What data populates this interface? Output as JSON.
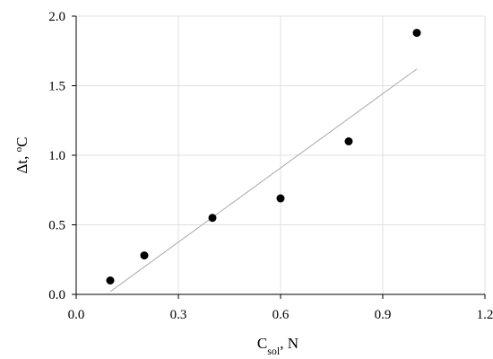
{
  "chart_data": {
    "type": "scatter",
    "title": "",
    "xlabel_main": "C",
    "xlabel_sub": "sol",
    "xlabel_tail": ", N",
    "ylabel_main": "Δt, ",
    "ylabel_sup": "o",
    "ylabel_tail": "C",
    "xlim": [
      0.0,
      1.2
    ],
    "ylim": [
      0.0,
      2.0
    ],
    "x_ticks": [
      "0.0",
      "0.3",
      "0.6",
      "0.9",
      "1.2"
    ],
    "y_ticks": [
      "0.0",
      "0.5",
      "1.0",
      "1.5",
      "2.0"
    ],
    "grid": true,
    "legend": "none",
    "series": [
      {
        "x": [
          0.1,
          0.2,
          0.4,
          0.6,
          0.8,
          1.0
        ],
        "y": [
          0.1,
          0.28,
          0.55,
          0.69,
          1.1,
          1.88
        ]
      }
    ],
    "trendline": {
      "x": [
        0.1,
        1.0
      ],
      "y": [
        0.02,
        1.62
      ]
    },
    "colors": {
      "points": "#000000",
      "trendline": "#a8a8a8",
      "grid": "#e0e0e0"
    }
  }
}
